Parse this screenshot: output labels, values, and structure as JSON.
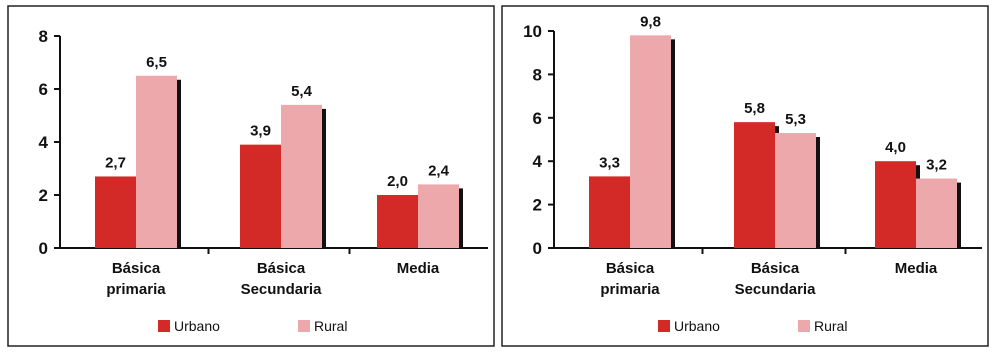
{
  "chart_data": [
    {
      "type": "bar",
      "title": "",
      "xlabel": "",
      "ylabel": "",
      "categories": [
        [
          "Básica",
          "primaria"
        ],
        [
          "Básica",
          "Secundaria"
        ],
        [
          "Media"
        ]
      ],
      "ylim": [
        0,
        8
      ],
      "yticks": [
        0,
        2,
        4,
        6,
        8
      ],
      "series": [
        {
          "name": "Urbano",
          "values": [
            2.7,
            3.9,
            2.0
          ],
          "labels": [
            "2,7",
            "3,9",
            "2,0"
          ]
        },
        {
          "name": "Rural",
          "values": [
            6.5,
            5.4,
            2.4
          ],
          "labels": [
            "6,5",
            "5,4",
            "2,4"
          ]
        }
      ],
      "legend": {
        "position": "bottom",
        "items": [
          "Urbano",
          "Rural"
        ]
      },
      "grid": false
    },
    {
      "type": "bar",
      "title": "",
      "xlabel": "",
      "ylabel": "",
      "categories": [
        [
          "Básica",
          "primaria"
        ],
        [
          "Básica",
          "Secundaria"
        ],
        [
          "Media"
        ]
      ],
      "ylim": [
        0,
        10
      ],
      "yticks": [
        0,
        2,
        4,
        6,
        8,
        10
      ],
      "series": [
        {
          "name": "Urbano",
          "values": [
            3.3,
            5.8,
            4.0
          ],
          "labels": [
            "3,3",
            "5,8",
            "4,0"
          ]
        },
        {
          "name": "Rural",
          "values": [
            9.8,
            5.3,
            3.2
          ],
          "labels": [
            "9,8",
            "5,3",
            "3,2"
          ]
        }
      ],
      "legend": {
        "position": "bottom",
        "items": [
          "Urbano",
          "Rural"
        ]
      },
      "grid": false
    }
  ],
  "colors": {
    "urbano": "#d42a27",
    "rural": "#eda8ab",
    "bar_shadow": "#111111"
  }
}
